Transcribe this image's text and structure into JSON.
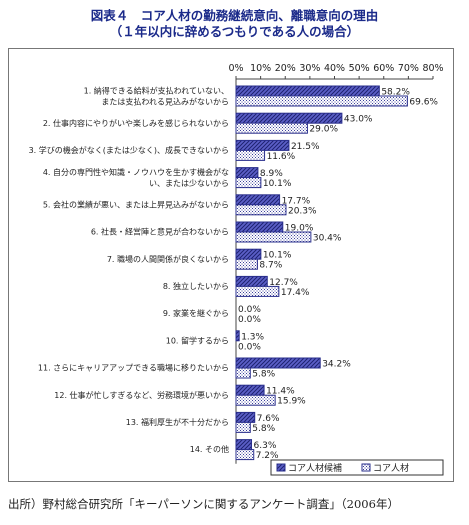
{
  "title": "図表４　コア人材の勤務継続意向、離職意向の理由",
  "subtitle": "（１年以内に辞めるつもりである人の場合）",
  "source": "出所）野村総合研究所「キーパーソンに関するアンケート調査」（2006年）",
  "colors": {
    "series1_stroke": "#2a2f8c",
    "series1_fill": "#5b5fc7",
    "series2_stroke": "#2a2f8c",
    "series2_fill": "#ffffff",
    "axis": "#444444",
    "text": "#222222"
  },
  "chart_data": {
    "type": "bar",
    "orientation": "horizontal",
    "xlim": [
      0,
      80
    ],
    "ticks": [
      "0%",
      "10%",
      "20%",
      "30%",
      "40%",
      "50%",
      "60%",
      "70%",
      "80%"
    ],
    "tick_values": [
      0,
      10,
      20,
      30,
      40,
      50,
      60,
      70,
      80
    ],
    "legend_position": "bottom-right",
    "categories": [
      [
        "1. 納得できる給料が支払われていない、",
        "または支払われる見込みがないから"
      ],
      [
        "2. 仕事内容にやりがいや楽しみを感じられないから"
      ],
      [
        "3. 学びの機会がなく(または少なく)、成長できないから"
      ],
      [
        "4. 自分の専門性や知識・ノウハウを生かす機会がな",
        "い、または少ないから"
      ],
      [
        "5. 会社の業績が悪い、または上昇見込みがないから"
      ],
      [
        "6. 社長・経営陣と意見が合わないから"
      ],
      [
        "7. 職場の人間関係が良くないから"
      ],
      [
        "8. 独立したいから"
      ],
      [
        "9. 家業を継ぐから"
      ],
      [
        "10. 留学するから"
      ],
      [
        "11. さらにキャリアアップできる職場に移りたいから"
      ],
      [
        "12. 仕事が忙しすぎるなど、労務環境が悪いから"
      ],
      [
        "13. 福利厚生が不十分だから"
      ],
      [
        "14. その他"
      ]
    ],
    "series": [
      {
        "name": "コア人材候補",
        "values": [
          58.2,
          43.0,
          21.5,
          8.9,
          17.7,
          19.0,
          10.1,
          12.7,
          0.0,
          1.3,
          34.2,
          11.4,
          7.6,
          6.3
        ],
        "labels": [
          "58.2%",
          "43.0%",
          "21.5%",
          "8.9%",
          "17.7%",
          "19.0%",
          "10.1%",
          "12.7%",
          "0.0%",
          "1.3%",
          "34.2%",
          "11.4%",
          "7.6%",
          "6.3%"
        ]
      },
      {
        "name": "コア人材",
        "values": [
          69.6,
          29.0,
          11.6,
          10.1,
          20.3,
          30.4,
          8.7,
          17.4,
          0.0,
          0.0,
          5.8,
          15.9,
          5.8,
          7.2
        ],
        "labels": [
          "69.6%",
          "29.0%",
          "11.6%",
          "10.1%",
          "20.3%",
          "30.4%",
          "8.7%",
          "17.4%",
          "0.0%",
          "0.0%",
          "5.8%",
          "15.9%",
          "5.8%",
          "7.2%"
        ]
      }
    ]
  }
}
